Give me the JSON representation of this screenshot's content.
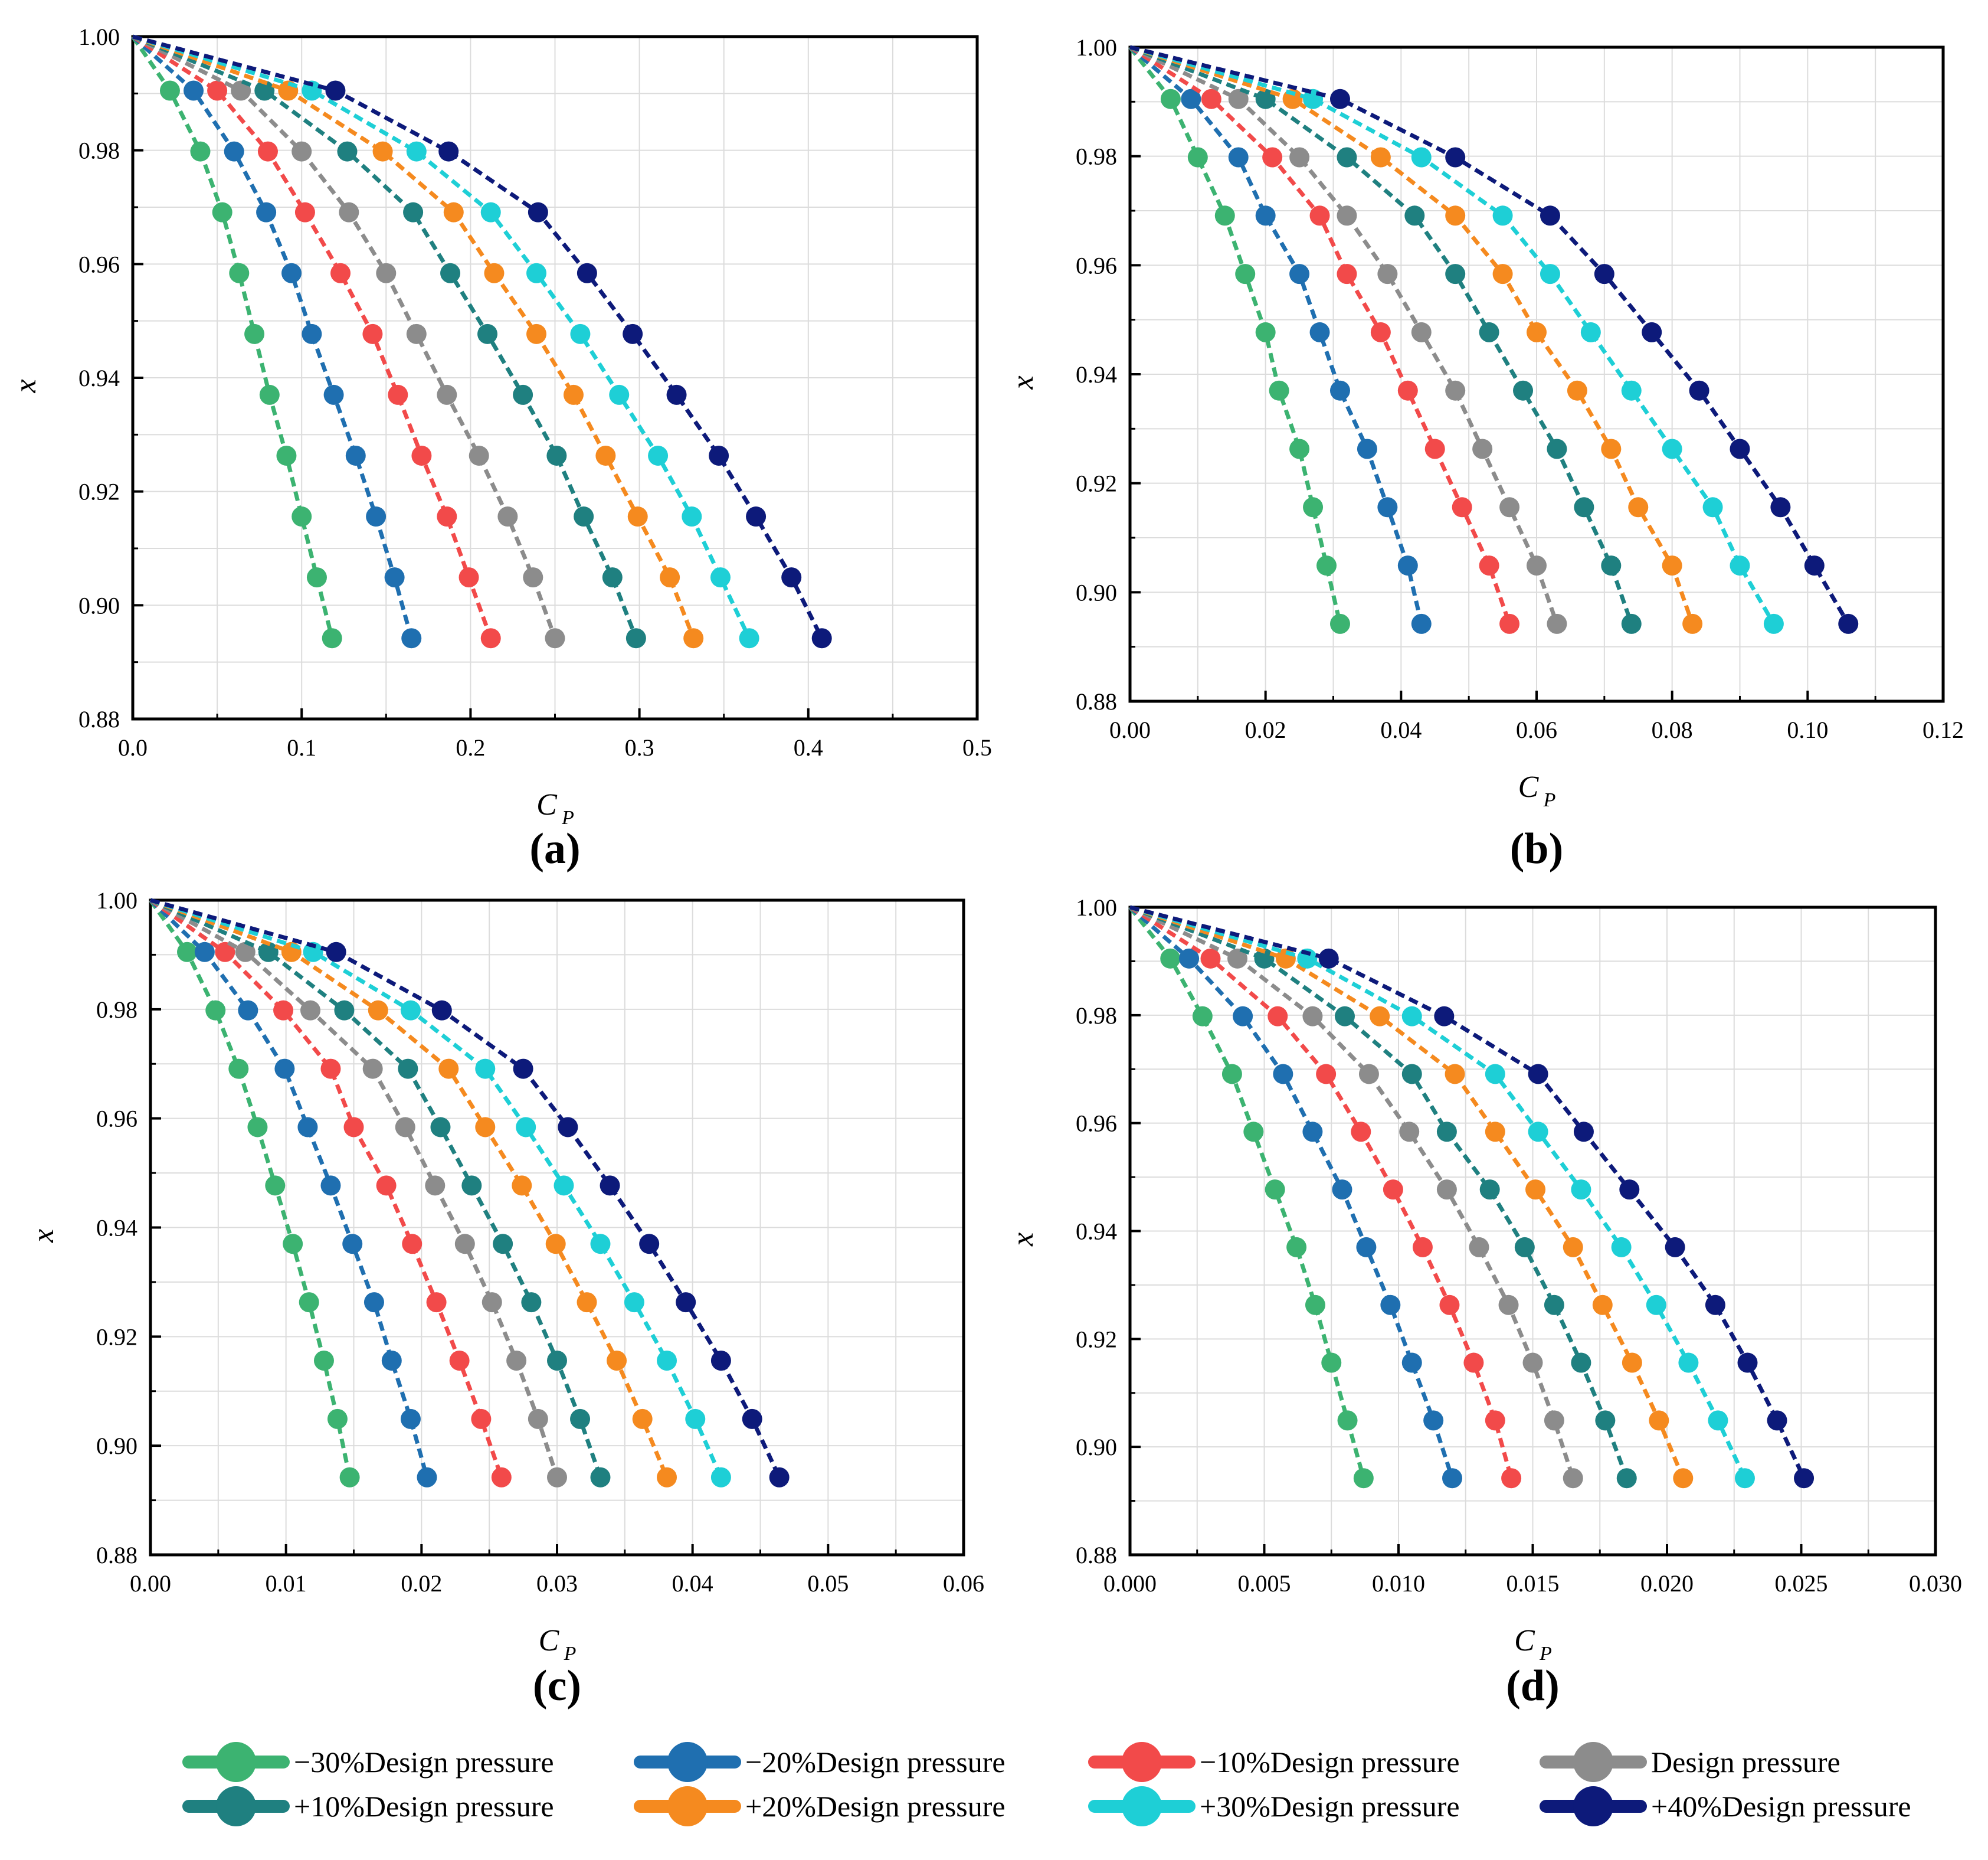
{
  "legend": {
    "entries": [
      {
        "label": "−30%Design pressure",
        "color": "#3cb371"
      },
      {
        "label": "−20%Design pressure",
        "color": "#1f6fb0"
      },
      {
        "label": "−10%Design pressure",
        "color": "#f24a4a"
      },
      {
        "label": "Design pressure",
        "color": "#8c8c8c"
      },
      {
        "label": "+10%Design pressure",
        "color": "#1f8080"
      },
      {
        "label": "+20%Design pressure",
        "color": "#f58a1f"
      },
      {
        "label": "+30%Design pressure",
        "color": "#1ecfd6"
      },
      {
        "label": "+40%Design pressure",
        "color": "#0d1a7a"
      }
    ]
  },
  "chart_data": [
    {
      "type": "line",
      "panel": "(a)",
      "xlabel": "C",
      "xlabel_sub": "P",
      "ylabel": "x",
      "xlim": [
        0.0,
        0.5
      ],
      "ylim": [
        0.88,
        1.0
      ],
      "xticks": [
        "0.0",
        "0.1",
        "0.2",
        "0.3",
        "0.4",
        "0.5"
      ],
      "yticks": [
        "0.88",
        "0.90",
        "0.92",
        "0.94",
        "0.96",
        "0.98",
        "1.00"
      ],
      "grid": true,
      "y": [
        1.0,
        0.9905,
        0.9798,
        0.9691,
        0.9584,
        0.9477,
        0.937,
        0.9263,
        0.9156,
        0.9049,
        0.8942
      ],
      "series": [
        {
          "name": "−30%Design pressure",
          "x": [
            0.0,
            0.022,
            0.04,
            0.053,
            0.063,
            0.072,
            0.081,
            0.091,
            0.1,
            0.109,
            0.118
          ]
        },
        {
          "name": "−20%Design pressure",
          "x": [
            0.0,
            0.036,
            0.06,
            0.079,
            0.094,
            0.106,
            0.119,
            0.132,
            0.144,
            0.155,
            0.165
          ]
        },
        {
          "name": "−10%Design pressure",
          "x": [
            0.0,
            0.05,
            0.08,
            0.102,
            0.123,
            0.142,
            0.157,
            0.171,
            0.186,
            0.199,
            0.212
          ]
        },
        {
          "name": "Design pressure",
          "x": [
            0.0,
            0.064,
            0.1,
            0.128,
            0.15,
            0.168,
            0.186,
            0.205,
            0.222,
            0.237,
            0.25
          ]
        },
        {
          "name": "+10%Design pressure",
          "x": [
            0.0,
            0.078,
            0.127,
            0.166,
            0.188,
            0.21,
            0.231,
            0.251,
            0.267,
            0.284,
            0.298
          ]
        },
        {
          "name": "+20%Design pressure",
          "x": [
            0.0,
            0.092,
            0.148,
            0.19,
            0.214,
            0.239,
            0.261,
            0.28,
            0.299,
            0.318,
            0.332
          ]
        },
        {
          "name": "+30%Design pressure",
          "x": [
            0.0,
            0.106,
            0.168,
            0.212,
            0.239,
            0.265,
            0.288,
            0.311,
            0.331,
            0.348,
            0.365
          ]
        },
        {
          "name": "+40%Design pressure",
          "x": [
            0.0,
            0.12,
            0.187,
            0.24,
            0.269,
            0.296,
            0.322,
            0.347,
            0.369,
            0.39,
            0.408
          ]
        }
      ]
    },
    {
      "type": "line",
      "panel": "(b)",
      "xlabel": "C",
      "xlabel_sub": "P",
      "ylabel": "x",
      "xlim": [
        0.0,
        0.12
      ],
      "ylim": [
        0.88,
        1.0
      ],
      "xticks": [
        "0.00",
        "0.02",
        "0.04",
        "0.06",
        "0.08",
        "0.10",
        "0.12"
      ],
      "yticks": [
        "0.88",
        "0.90",
        "0.92",
        "0.94",
        "0.96",
        "0.98",
        "1.00"
      ],
      "grid": true,
      "y": [
        1.0,
        0.9905,
        0.9798,
        0.9691,
        0.9584,
        0.9477,
        0.937,
        0.9263,
        0.9156,
        0.9049,
        0.8942
      ],
      "series": [
        {
          "name": "−30%Design pressure",
          "x": [
            0.0,
            0.006,
            0.01,
            0.014,
            0.017,
            0.02,
            0.022,
            0.025,
            0.027,
            0.029,
            0.031
          ]
        },
        {
          "name": "−20%Design pressure",
          "x": [
            0.0,
            0.009,
            0.016,
            0.02,
            0.025,
            0.028,
            0.031,
            0.035,
            0.038,
            0.041,
            0.043
          ]
        },
        {
          "name": "−10%Design pressure",
          "x": [
            0.0,
            0.012,
            0.021,
            0.028,
            0.032,
            0.037,
            0.041,
            0.045,
            0.049,
            0.053,
            0.056
          ]
        },
        {
          "name": "Design pressure",
          "x": [
            0.0,
            0.016,
            0.025,
            0.032,
            0.038,
            0.043,
            0.048,
            0.052,
            0.056,
            0.06,
            0.063
          ]
        },
        {
          "name": "+10%Design pressure",
          "x": [
            0.0,
            0.02,
            0.032,
            0.042,
            0.048,
            0.053,
            0.058,
            0.063,
            0.067,
            0.071,
            0.074
          ]
        },
        {
          "name": "+20%Design pressure",
          "x": [
            0.0,
            0.024,
            0.037,
            0.048,
            0.055,
            0.06,
            0.066,
            0.071,
            0.075,
            0.08,
            0.083
          ]
        },
        {
          "name": "+30%Design pressure",
          "x": [
            0.0,
            0.027,
            0.043,
            0.055,
            0.062,
            0.068,
            0.074,
            0.08,
            0.086,
            0.09,
            0.095
          ]
        },
        {
          "name": "+40%Design pressure",
          "x": [
            0.0,
            0.031,
            0.048,
            0.062,
            0.07,
            0.077,
            0.084,
            0.09,
            0.096,
            0.101,
            0.106
          ]
        }
      ]
    },
    {
      "type": "line",
      "panel": "(c)",
      "xlabel": "C",
      "xlabel_sub": "P",
      "ylabel": "x",
      "xlim": [
        0.0,
        0.06
      ],
      "ylim": [
        0.88,
        1.0
      ],
      "xticks": [
        "0.00",
        "0.01",
        "0.02",
        "0.03",
        "0.04",
        "0.05",
        "0.06"
      ],
      "yticks": [
        "0.88",
        "0.90",
        "0.92",
        "0.94",
        "0.96",
        "0.98",
        "1.00"
      ],
      "grid": true,
      "y": [
        1.0,
        0.9905,
        0.9798,
        0.9691,
        0.9584,
        0.9477,
        0.937,
        0.9263,
        0.9156,
        0.9049,
        0.8942
      ],
      "series": [
        {
          "name": "−30%Design pressure",
          "x": [
            0.0,
            0.0027,
            0.0048,
            0.0065,
            0.0079,
            0.0092,
            0.0105,
            0.0117,
            0.0128,
            0.0138,
            0.0147
          ]
        },
        {
          "name": "−20%Design pressure",
          "x": [
            0.0,
            0.004,
            0.0072,
            0.0099,
            0.0116,
            0.0133,
            0.0149,
            0.0165,
            0.0178,
            0.0192,
            0.0204
          ]
        },
        {
          "name": "−10%Design pressure",
          "x": [
            0.0,
            0.0055,
            0.0098,
            0.0133,
            0.015,
            0.0174,
            0.0193,
            0.0211,
            0.0228,
            0.0244,
            0.0259
          ]
        },
        {
          "name": "Design pressure",
          "x": [
            0.0,
            0.007,
            0.0118,
            0.0164,
            0.0188,
            0.021,
            0.0232,
            0.0252,
            0.027,
            0.0286,
            0.03
          ]
        },
        {
          "name": "+10%Design pressure",
          "x": [
            0.0,
            0.0087,
            0.0143,
            0.019,
            0.0214,
            0.0237,
            0.026,
            0.0281,
            0.03,
            0.0317,
            0.0332
          ]
        },
        {
          "name": "+20%Design pressure",
          "x": [
            0.0,
            0.0104,
            0.0168,
            0.022,
            0.0247,
            0.0274,
            0.0299,
            0.0322,
            0.0344,
            0.0363,
            0.0381
          ]
        },
        {
          "name": "+30%Design pressure",
          "x": [
            0.0,
            0.012,
            0.0192,
            0.0247,
            0.0277,
            0.0305,
            0.0332,
            0.0357,
            0.0381,
            0.0402,
            0.0421
          ]
        },
        {
          "name": "+40%Design pressure",
          "x": [
            0.0,
            0.0137,
            0.0215,
            0.0275,
            0.0308,
            0.0339,
            0.0368,
            0.0395,
            0.0421,
            0.0444,
            0.0464
          ]
        }
      ]
    },
    {
      "type": "line",
      "panel": "(d)",
      "xlabel": "C",
      "xlabel_sub": "P",
      "ylabel": "x",
      "xlim": [
        0.0,
        0.03
      ],
      "ylim": [
        0.88,
        1.0
      ],
      "xticks": [
        "0.000",
        "0.005",
        "0.010",
        "0.015",
        "0.020",
        "0.025",
        "0.030"
      ],
      "yticks": [
        "0.88",
        "0.90",
        "0.92",
        "0.94",
        "0.96",
        "0.98",
        "1.00"
      ],
      "grid": true,
      "y": [
        1.0,
        0.9905,
        0.9798,
        0.9691,
        0.9584,
        0.9477,
        0.937,
        0.9263,
        0.9156,
        0.9049,
        0.8942
      ],
      "series": [
        {
          "name": "−30%Design pressure",
          "x": [
            0.0,
            0.0015,
            0.0027,
            0.0038,
            0.0046,
            0.0054,
            0.0062,
            0.0069,
            0.0075,
            0.0081,
            0.0087
          ]
        },
        {
          "name": "−20%Design pressure",
          "x": [
            0.0,
            0.0022,
            0.0042,
            0.0057,
            0.0068,
            0.0079,
            0.0088,
            0.0097,
            0.0105,
            0.0113,
            0.012
          ]
        },
        {
          "name": "−10%Design pressure",
          "x": [
            0.0,
            0.003,
            0.0055,
            0.0073,
            0.0086,
            0.0098,
            0.0109,
            0.0119,
            0.0128,
            0.0136,
            0.0142
          ]
        },
        {
          "name": "Design pressure",
          "x": [
            0.0,
            0.004,
            0.0068,
            0.0089,
            0.0104,
            0.0118,
            0.013,
            0.0141,
            0.015,
            0.0158,
            0.0165
          ]
        },
        {
          "name": "+10%Design pressure",
          "x": [
            0.0,
            0.005,
            0.008,
            0.0105,
            0.0118,
            0.0134,
            0.0147,
            0.0158,
            0.0168,
            0.0177,
            0.0185
          ]
        },
        {
          "name": "+20%Design pressure",
          "x": [
            0.0,
            0.0058,
            0.0093,
            0.0121,
            0.0136,
            0.0151,
            0.0165,
            0.0176,
            0.0187,
            0.0197,
            0.0206
          ]
        },
        {
          "name": "+30%Design pressure",
          "x": [
            0.0,
            0.0066,
            0.0105,
            0.0136,
            0.0152,
            0.0168,
            0.0183,
            0.0196,
            0.0208,
            0.0219,
            0.0229
          ]
        },
        {
          "name": "+40%Design pressure",
          "x": [
            0.0,
            0.0074,
            0.0117,
            0.0152,
            0.0169,
            0.0186,
            0.0203,
            0.0218,
            0.023,
            0.0241,
            0.0251
          ]
        }
      ]
    }
  ]
}
